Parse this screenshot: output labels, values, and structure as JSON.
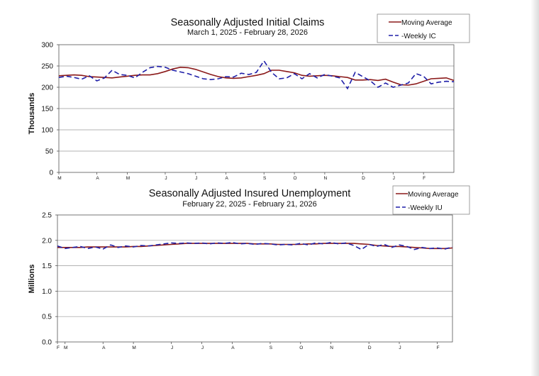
{
  "chart_data": [
    {
      "type": "line",
      "title": "Seasonally Adjusted Initial Claims",
      "subtitle": "March 1, 2025 - February 28, 2026",
      "ylabel": "Thousands",
      "xlabel": "",
      "ylim": [
        0,
        300
      ],
      "yticks": [
        0,
        50,
        100,
        150,
        200,
        250,
        300
      ],
      "x_tick_labels": [
        "M",
        "A",
        "M",
        "J",
        "J",
        "A",
        "S",
        "O",
        "N",
        "D",
        "J",
        "F"
      ],
      "x_tick_weeks": [
        0,
        5,
        9,
        14,
        18,
        22,
        27,
        31,
        35,
        40,
        44,
        48
      ],
      "n_weeks": 53,
      "grid": true,
      "legend_position": "top-right",
      "series": [
        {
          "name": "Moving Average",
          "style": "solid",
          "color": "#8b1a1a",
          "values": [
            227,
            228,
            229,
            228,
            225,
            224,
            223,
            222,
            224,
            226,
            228,
            229,
            229,
            232,
            237,
            243,
            247,
            246,
            242,
            236,
            230,
            225,
            222,
            221,
            222,
            225,
            228,
            232,
            240,
            240,
            237,
            234,
            228,
            226,
            227,
            228,
            227,
            225,
            223,
            217,
            217,
            218,
            216,
            219,
            212,
            206,
            205,
            208,
            214,
            220,
            221,
            222,
            216
          ]
        },
        {
          "name": "-Weekly IC",
          "style": "dashed",
          "color": "#1f1fa8",
          "values": [
            223,
            226,
            223,
            219,
            227,
            215,
            222,
            240,
            230,
            228,
            222,
            235,
            246,
            249,
            247,
            240,
            236,
            232,
            226,
            220,
            218,
            220,
            225,
            224,
            233,
            230,
            235,
            262,
            235,
            220,
            222,
            232,
            220,
            232,
            222,
            230,
            226,
            222,
            197,
            235,
            225,
            215,
            200,
            210,
            200,
            205,
            210,
            232,
            226,
            208,
            212,
            214,
            213
          ]
        }
      ]
    },
    {
      "type": "line",
      "title": "Seasonally Adjusted Insured Unemployment",
      "subtitle": "February 22, 2025 - February 21, 2026",
      "ylabel": "Millions",
      "xlabel": "",
      "ylim": [
        0,
        2.5
      ],
      "yticks": [
        "0.0",
        "0.5",
        "1.0",
        "1.5",
        "2.0",
        "2.5"
      ],
      "x_tick_labels": [
        "F",
        "M",
        "A",
        "M",
        "J",
        "J",
        "A",
        "S",
        "O",
        "N",
        "D",
        "J",
        "F"
      ],
      "x_tick_weeks": [
        0,
        1,
        6,
        10,
        15,
        19,
        23,
        28,
        32,
        36,
        41,
        45,
        50
      ],
      "n_weeks": 53,
      "grid": true,
      "legend_position": "top-right",
      "series": [
        {
          "name": "Moving Average",
          "style": "solid",
          "color": "#8b1a1a",
          "values": [
            1.86,
            1.86,
            1.86,
            1.86,
            1.87,
            1.87,
            1.87,
            1.87,
            1.87,
            1.87,
            1.88,
            1.88,
            1.89,
            1.9,
            1.91,
            1.92,
            1.93,
            1.94,
            1.94,
            1.94,
            1.94,
            1.94,
            1.94,
            1.94,
            1.94,
            1.94,
            1.93,
            1.93,
            1.93,
            1.92,
            1.92,
            1.92,
            1.92,
            1.93,
            1.93,
            1.94,
            1.94,
            1.94,
            1.94,
            1.94,
            1.93,
            1.92,
            1.9,
            1.89,
            1.88,
            1.88,
            1.87,
            1.86,
            1.85,
            1.84,
            1.84,
            1.84,
            1.85
          ]
        },
        {
          "name": "-Weekly IU",
          "style": "dashed",
          "color": "#1f1fa8",
          "values": [
            1.89,
            1.84,
            1.86,
            1.88,
            1.84,
            1.87,
            1.83,
            1.91,
            1.86,
            1.89,
            1.87,
            1.9,
            1.89,
            1.91,
            1.93,
            1.95,
            1.94,
            1.95,
            1.94,
            1.95,
            1.93,
            1.95,
            1.94,
            1.96,
            1.93,
            1.94,
            1.92,
            1.94,
            1.93,
            1.91,
            1.92,
            1.91,
            1.94,
            1.91,
            1.95,
            1.93,
            1.96,
            1.93,
            1.95,
            1.9,
            1.82,
            1.92,
            1.88,
            1.92,
            1.86,
            1.91,
            1.88,
            1.82,
            1.86,
            1.84,
            1.85,
            1.83,
            1.87
          ]
        }
      ]
    }
  ]
}
